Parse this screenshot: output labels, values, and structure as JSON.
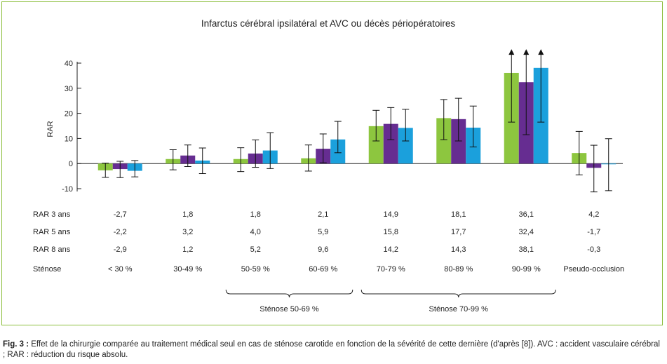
{
  "chart_data": {
    "type": "bar",
    "title": "Infarctus cérébral ipsilatéral et AVC ou décès périopératoires",
    "ylabel": "RAR",
    "xlabel": "",
    "ylim": [
      -10,
      40
    ],
    "yticks": [
      -10,
      0,
      10,
      20,
      30,
      40
    ],
    "grid": false,
    "categories": [
      "< 30 %",
      "30-49 %",
      "50-59 %",
      "60-69 %",
      "70-79 %",
      "80-89 %",
      "90-99 %",
      "Pseudo-occlusion"
    ],
    "series": [
      {
        "name": "RAR 3 ans",
        "color": "#8dc63f",
        "values": [
          -2.7,
          1.8,
          1.8,
          2.1,
          14.9,
          18.1,
          36.1,
          4.2
        ],
        "labels": [
          "-2,7",
          "1,8",
          "1,8",
          "2,1",
          "14,9",
          "18,1",
          "36,1",
          "4,2"
        ],
        "err_low": [
          -5.5,
          -2.5,
          -3.2,
          -3.0,
          9.0,
          9.5,
          16.5,
          -4.5
        ],
        "err_high": [
          0.2,
          5.5,
          6.3,
          7.4,
          21.2,
          25.5,
          45,
          12.8
        ],
        "arrow": [
          false,
          false,
          false,
          false,
          false,
          false,
          true,
          false
        ]
      },
      {
        "name": "RAR 5 ans",
        "color": "#662d91",
        "values": [
          -2.2,
          3.2,
          4.0,
          5.9,
          15.8,
          17.7,
          32.4,
          -1.7
        ],
        "labels": [
          "-2,2",
          "3,2",
          "4,0",
          "5,9",
          "15,8",
          "17,7",
          "32,4",
          "-1,7"
        ],
        "err_low": [
          -5.6,
          -1.2,
          -1.5,
          0.3,
          9.5,
          9.0,
          11.5,
          -11.3
        ],
        "err_high": [
          0.9,
          7.4,
          9.4,
          11.8,
          22.3,
          26.0,
          45,
          7.3
        ],
        "arrow": [
          false,
          false,
          false,
          false,
          false,
          false,
          true,
          false
        ]
      },
      {
        "name": "RAR 8 ans",
        "color": "#1ba0dc",
        "values": [
          -2.9,
          1.2,
          5.2,
          9.6,
          14.2,
          14.3,
          38.1,
          -0.3
        ],
        "labels": [
          "-2,9",
          "1,2",
          "5,2",
          "9,6",
          "14,2",
          "14,3",
          "38,1",
          "-0,3"
        ],
        "err_low": [
          -5.3,
          -4.0,
          -2.0,
          4.3,
          9.0,
          6.6,
          16.5,
          -10.8
        ],
        "err_high": [
          1.2,
          6.2,
          12.3,
          16.8,
          21.6,
          22.9,
          45,
          9.9
        ],
        "arrow": [
          false,
          false,
          false,
          false,
          false,
          false,
          true,
          false
        ]
      }
    ],
    "stenose_label": "Sténose",
    "groups": [
      {
        "label": "Sténose 50-69 %",
        "from": 2,
        "to": 3
      },
      {
        "label": "Sténose 70-99 %",
        "from": 4,
        "to": 6
      }
    ]
  },
  "caption": {
    "prefix": "Fig. 3 :",
    "text": " Effet de la chirurgie comparée au traitement médical seul en cas de sténose carotide en fonction de la sévérité de cette dernière (d'après [8]). AVC : accident vasculaire cérébral ; RAR : réduction du risque absolu."
  }
}
